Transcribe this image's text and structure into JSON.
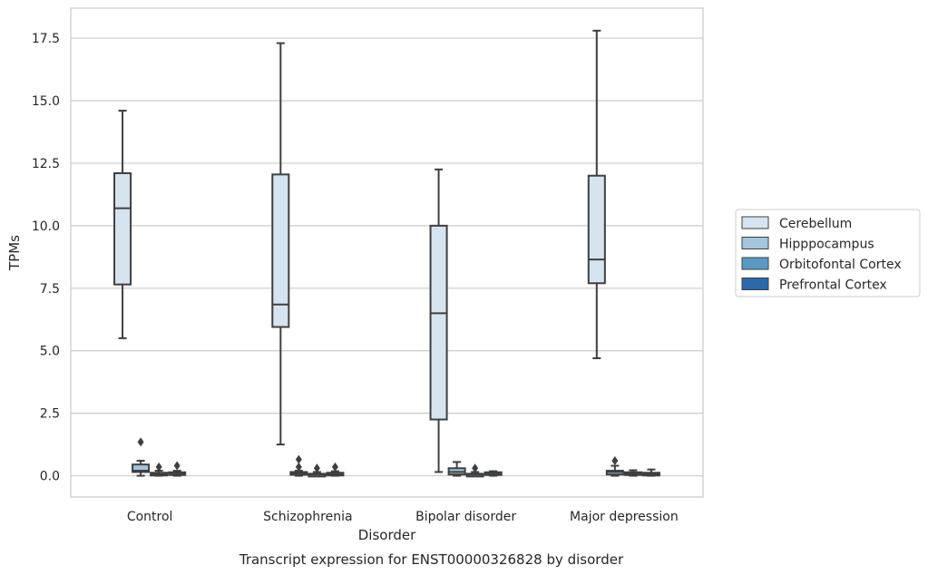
{
  "chart_data": {
    "type": "box",
    "title": "",
    "caption": "Transcript expression for ENST00000326828 by disorder",
    "xlabel": "Disorder",
    "ylabel": "TPMs",
    "ylim": [
      -0.85,
      18.7
    ],
    "yticks": [
      "0.0",
      "2.5",
      "5.0",
      "7.5",
      "10.0",
      "12.5",
      "15.0",
      "17.5"
    ],
    "grid": "horizontal",
    "legend_position": "right",
    "categories": [
      "Control",
      "Schizophrenia",
      "Bipolar disorder",
      "Major depression"
    ],
    "series": [
      {
        "name": "Cerebellum",
        "color": "#d6e4f0",
        "boxes": [
          {
            "min": 5.5,
            "q1": 7.65,
            "median": 10.7,
            "q3": 12.1,
            "max": 14.6,
            "outliers": []
          },
          {
            "min": 1.25,
            "q1": 5.95,
            "median": 6.85,
            "q3": 12.05,
            "max": 17.3,
            "outliers": []
          },
          {
            "min": 0.15,
            "q1": 2.25,
            "median": 6.5,
            "q3": 10.0,
            "max": 12.25,
            "outliers": []
          },
          {
            "min": 4.7,
            "q1": 7.7,
            "median": 8.65,
            "q3": 12.0,
            "max": 17.8,
            "outliers": []
          }
        ]
      },
      {
        "name": "Hipppocampus",
        "color": "#a3c6de",
        "boxes": [
          {
            "min": 0.0,
            "q1": 0.15,
            "median": 0.2,
            "q3": 0.45,
            "max": 0.6,
            "outliers": [
              1.35
            ]
          },
          {
            "min": 0.0,
            "q1": 0.05,
            "median": 0.1,
            "q3": 0.15,
            "max": 0.2,
            "outliers": [
              0.35,
              0.65
            ]
          },
          {
            "min": 0.0,
            "q1": 0.05,
            "median": 0.15,
            "q3": 0.3,
            "max": 0.55,
            "outliers": []
          },
          {
            "min": 0.0,
            "q1": 0.05,
            "median": 0.15,
            "q3": 0.2,
            "max": 0.4,
            "outliers": [
              0.6
            ]
          }
        ]
      },
      {
        "name": "Orbitofontal Cortex",
        "color": "#5b9ac6",
        "boxes": [
          {
            "min": 0.0,
            "q1": 0.03,
            "median": 0.07,
            "q3": 0.12,
            "max": 0.2,
            "outliers": [
              0.35
            ]
          },
          {
            "min": 0.0,
            "q1": 0.02,
            "median": 0.05,
            "q3": 0.08,
            "max": 0.15,
            "outliers": [
              0.3
            ]
          },
          {
            "min": 0.0,
            "q1": 0.02,
            "median": 0.05,
            "q3": 0.08,
            "max": 0.15,
            "outliers": [
              0.3
            ]
          },
          {
            "min": 0.0,
            "q1": 0.04,
            "median": 0.08,
            "q3": 0.14,
            "max": 0.22,
            "outliers": []
          }
        ]
      },
      {
        "name": "Prefrontal Cortex",
        "color": "#2a6aaa",
        "boxes": [
          {
            "min": 0.0,
            "q1": 0.05,
            "median": 0.1,
            "q3": 0.14,
            "max": 0.2,
            "outliers": [
              0.4
            ]
          },
          {
            "min": 0.0,
            "q1": 0.04,
            "median": 0.08,
            "q3": 0.12,
            "max": 0.18,
            "outliers": [
              0.35
            ]
          },
          {
            "min": 0.0,
            "q1": 0.05,
            "median": 0.1,
            "q3": 0.14,
            "max": 0.18,
            "outliers": []
          },
          {
            "min": 0.0,
            "q1": 0.03,
            "median": 0.07,
            "q3": 0.12,
            "max": 0.25,
            "outliers": []
          }
        ]
      }
    ]
  }
}
